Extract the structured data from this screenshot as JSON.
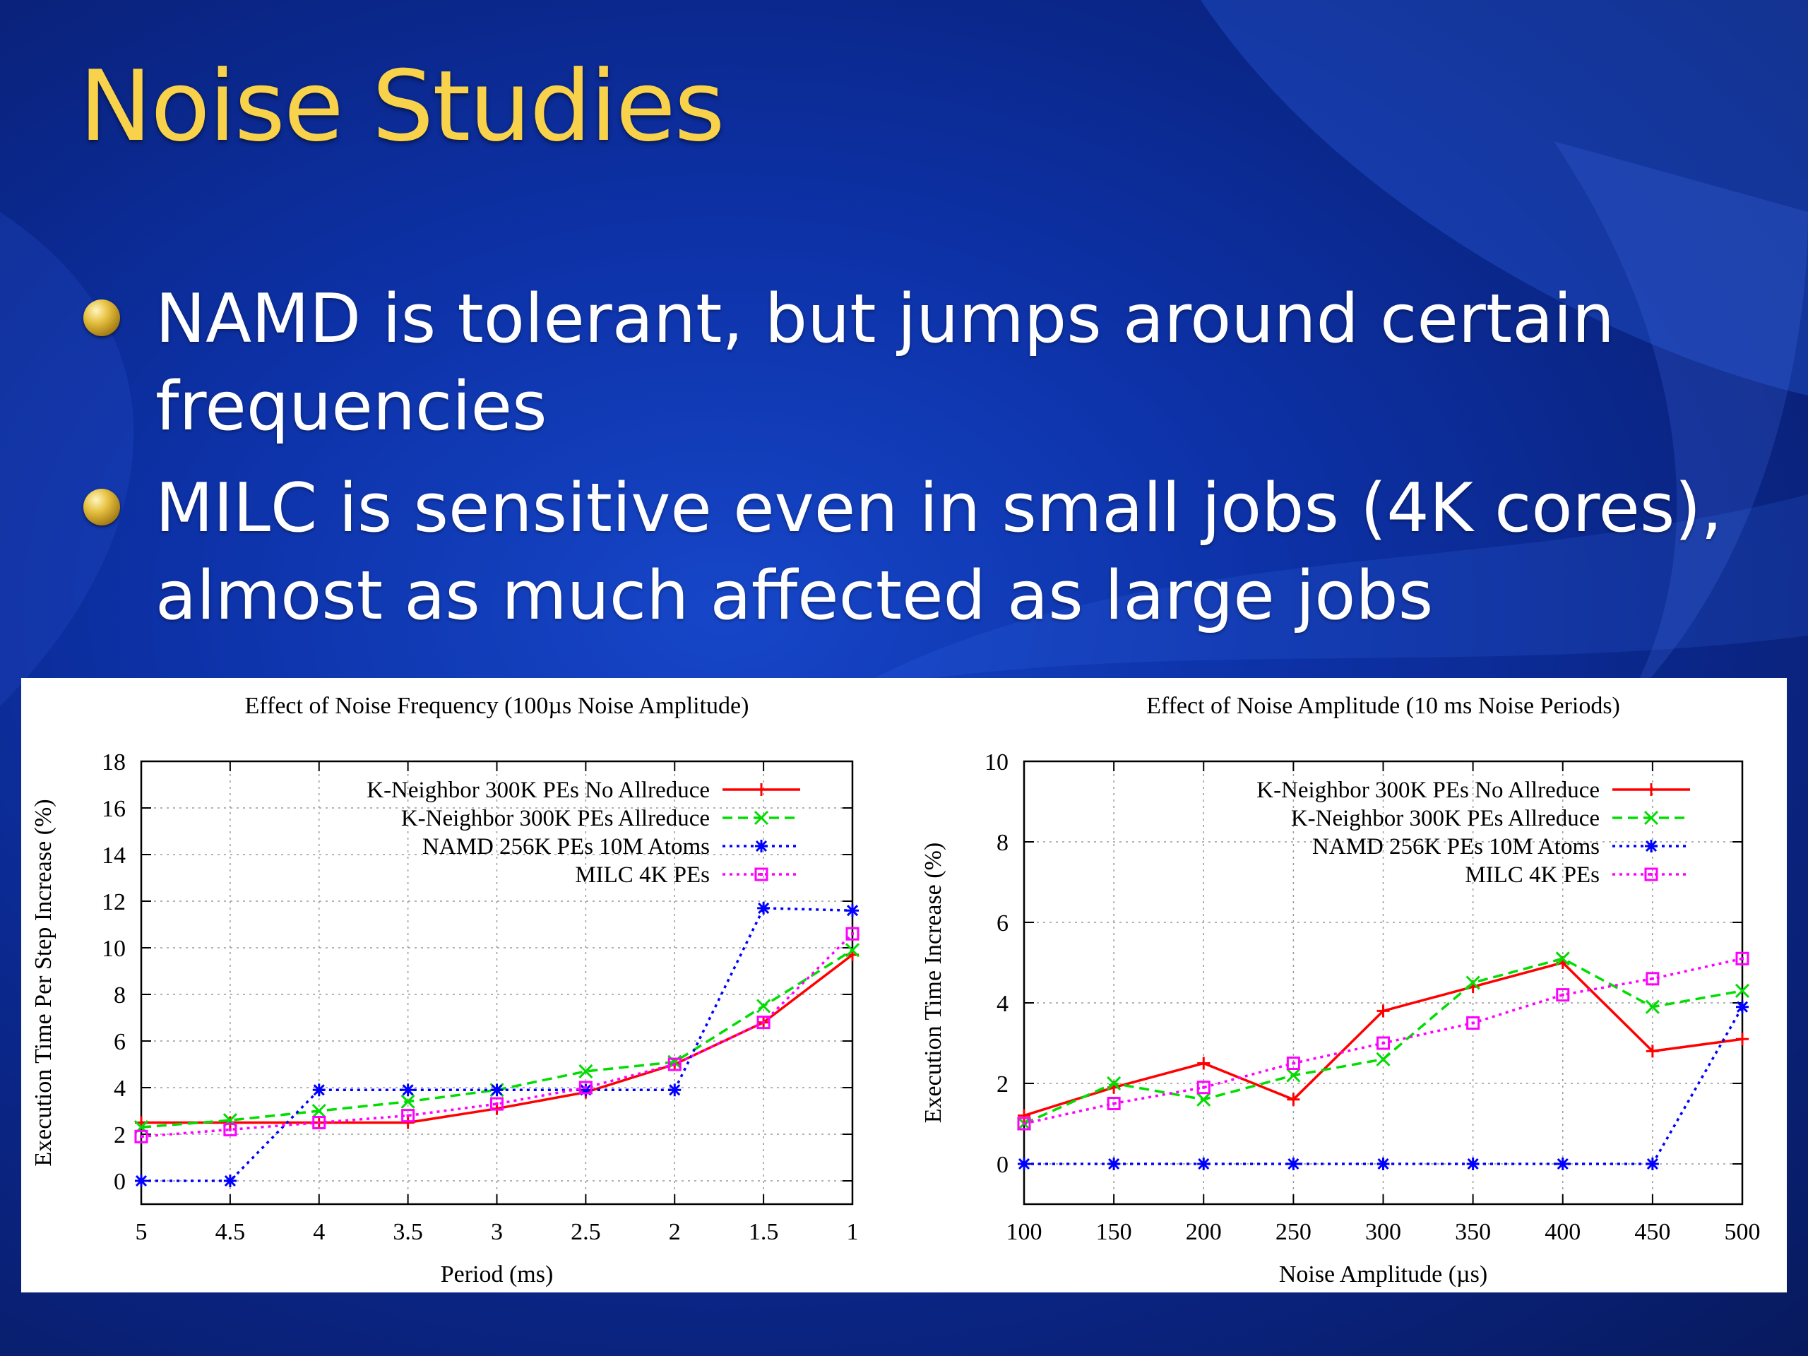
{
  "slide": {
    "title": "Noise Studies",
    "bullets": [
      "NAMD is tolerant, but jumps around certain frequencies",
      "MILC is sensitive even in small jobs (4K cores), almost as much affected as large jobs"
    ]
  },
  "chart_data": [
    {
      "type": "line",
      "title": "Effect of Noise Frequency (100µs Noise Amplitude)",
      "xlabel": "Period (ms)",
      "ylabel": "Execution Time Per Step Increase (%)",
      "x": [
        "5",
        "4.5",
        "4",
        "3.5",
        "3",
        "2.5",
        "2",
        "1.5",
        "1"
      ],
      "ylim": [
        -1,
        18
      ],
      "yticks": [
        0,
        2,
        4,
        6,
        8,
        10,
        12,
        14,
        16,
        18
      ],
      "grid": true,
      "legend": "top-right",
      "series": [
        {
          "name": "K-Neighbor 300K PEs No Allreduce",
          "color": "#ff0000",
          "marker": "plus",
          "dash": "solid",
          "values": [
            2.5,
            2.5,
            2.5,
            2.5,
            3.1,
            3.8,
            5.0,
            6.8,
            9.7
          ]
        },
        {
          "name": "K-Neighbor 300K PEs Allreduce",
          "color": "#00dd00",
          "marker": "x",
          "dash": "dashed",
          "values": [
            2.3,
            2.6,
            3.0,
            3.4,
            3.9,
            4.7,
            5.1,
            7.5,
            9.9
          ]
        },
        {
          "name": "NAMD 256K PEs 10M Atoms",
          "color": "#0000ff",
          "marker": "star",
          "dash": "dotted",
          "values": [
            0.0,
            0.0,
            3.9,
            3.9,
            3.9,
            3.9,
            3.9,
            11.7,
            11.6
          ]
        },
        {
          "name": "MILC 4K PEs",
          "color": "#ff00ff",
          "marker": "square",
          "dash": "dotted",
          "values": [
            1.9,
            2.2,
            2.5,
            2.8,
            3.3,
            4.0,
            5.0,
            6.8,
            10.6
          ]
        }
      ]
    },
    {
      "type": "line",
      "title": "Effect of Noise Amplitude (10 ms Noise Periods)",
      "xlabel": "Noise Amplitude (µs)",
      "ylabel": "Execution Time Increase (%)",
      "x": [
        "100",
        "150",
        "200",
        "250",
        "300",
        "350",
        "400",
        "450",
        "500"
      ],
      "ylim": [
        -1,
        10
      ],
      "yticks": [
        0,
        2,
        4,
        6,
        8,
        10
      ],
      "grid": true,
      "legend": "top-right",
      "series": [
        {
          "name": "K-Neighbor 300K PEs No Allreduce",
          "color": "#ff0000",
          "marker": "plus",
          "dash": "solid",
          "values": [
            1.2,
            1.9,
            2.5,
            1.6,
            3.8,
            4.4,
            5.0,
            2.8,
            3.1
          ]
        },
        {
          "name": "K-Neighbor 300K PEs Allreduce",
          "color": "#00dd00",
          "marker": "x",
          "dash": "dashed",
          "values": [
            1.0,
            2.0,
            1.6,
            2.2,
            2.6,
            4.5,
            5.1,
            3.9,
            4.3
          ]
        },
        {
          "name": "NAMD 256K PEs 10M Atoms",
          "color": "#0000ff",
          "marker": "star",
          "dash": "dotted",
          "values": [
            0.0,
            0.0,
            0.0,
            0.0,
            0.0,
            0.0,
            0.0,
            0.0,
            3.9
          ]
        },
        {
          "name": "MILC 4K PEs",
          "color": "#ff00ff",
          "marker": "square",
          "dash": "dotted",
          "values": [
            1.0,
            1.5,
            1.9,
            2.5,
            3.0,
            3.5,
            4.2,
            4.6,
            5.1
          ]
        }
      ]
    }
  ]
}
